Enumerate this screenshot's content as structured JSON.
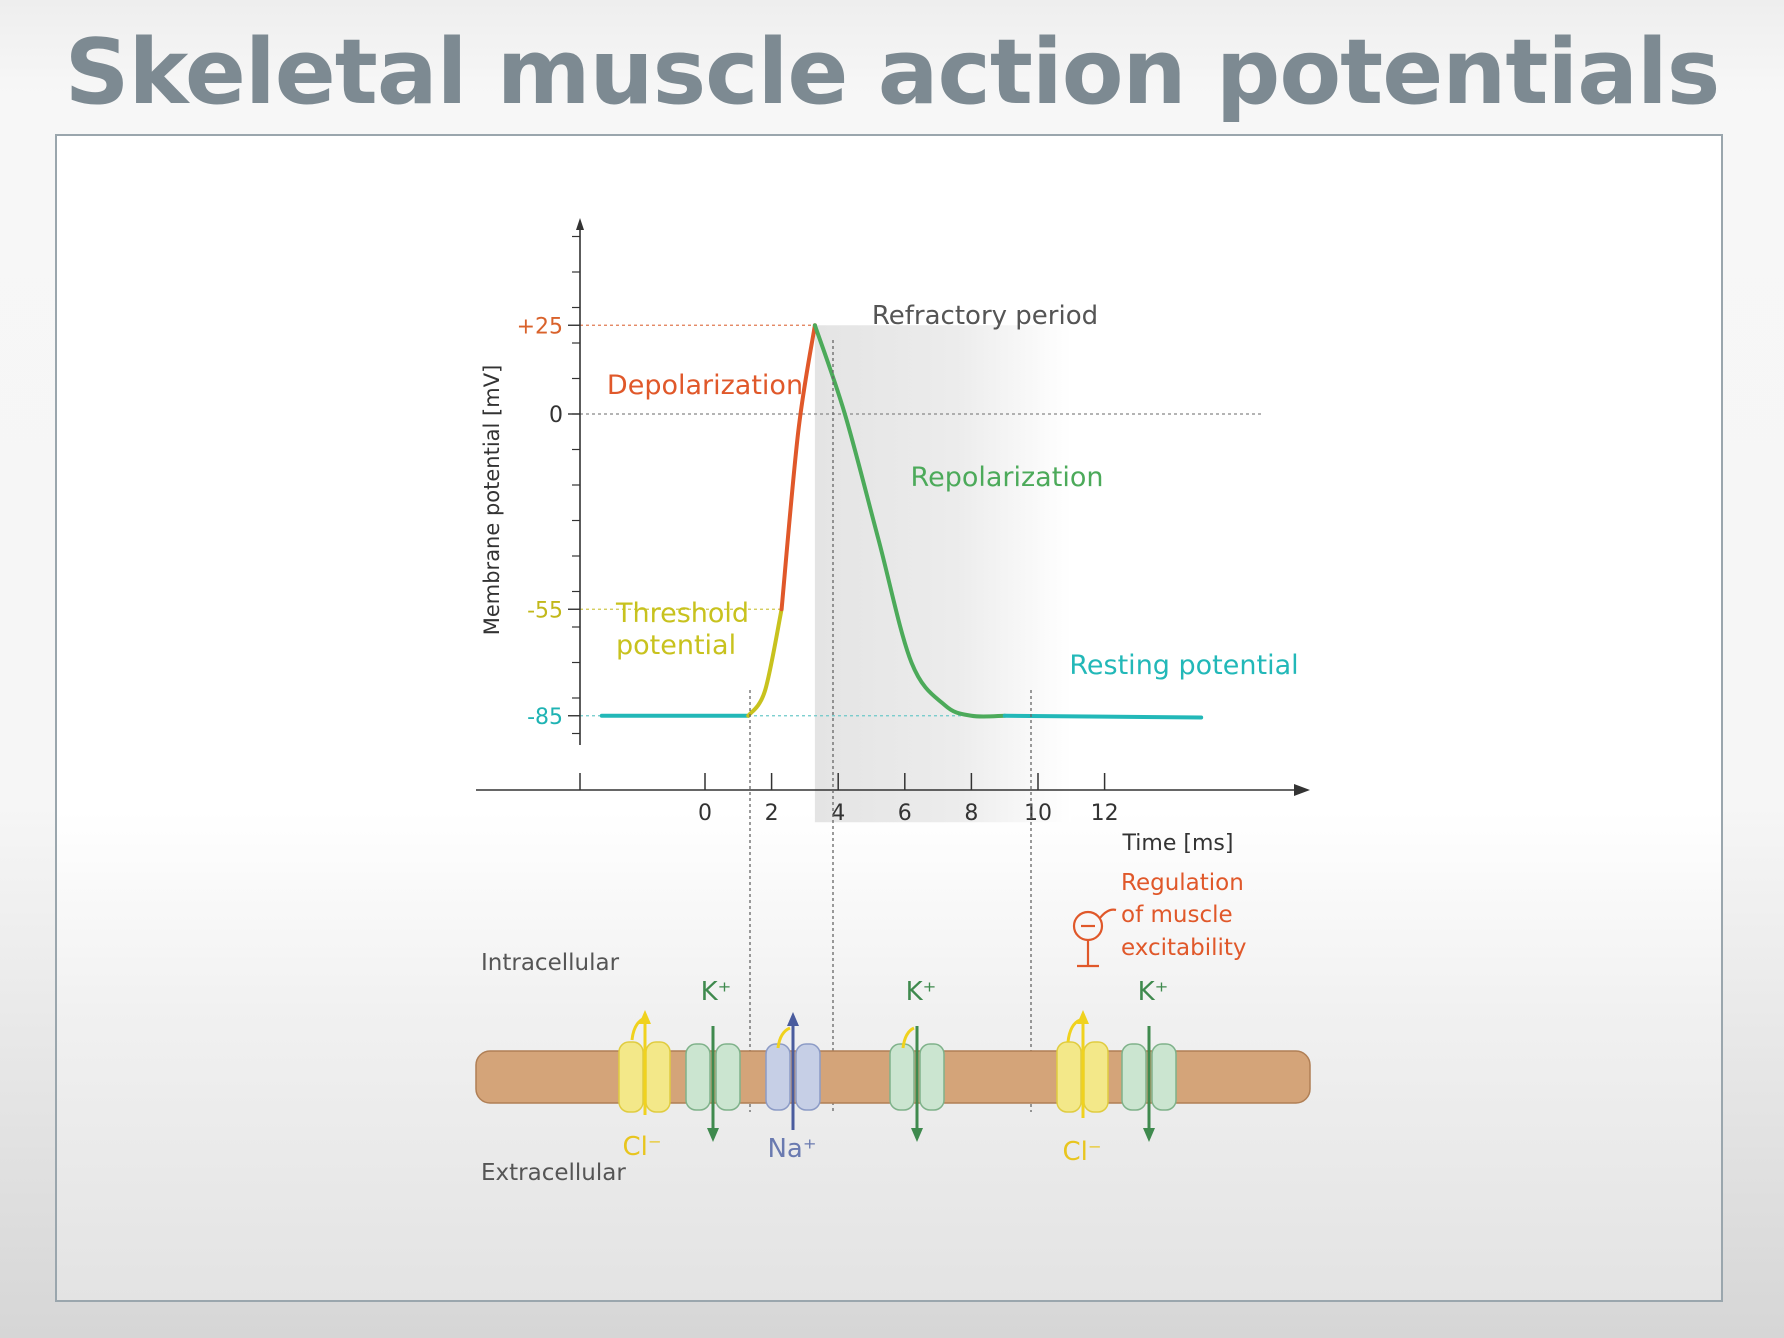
{
  "slide": {
    "title": "Skeletal muscle action potentials"
  },
  "chart_data": {
    "type": "line",
    "ylabel": "Membrane potential  [mV]",
    "xlabel": "Time  [ms]",
    "x_ticks": [
      "0",
      "2",
      "4",
      "6",
      "8",
      "10",
      "12"
    ],
    "y_ticks": [
      {
        "label": "+25",
        "value": 25,
        "color": "#d9622b"
      },
      {
        "label": "0",
        "value": 0,
        "color": "#333333"
      },
      {
        "label": "-55",
        "value": -55,
        "color": "#c2b81a"
      },
      {
        "label": "-85",
        "value": -85,
        "color": "#1fb3b3"
      }
    ],
    "series": [
      {
        "name": "Resting potential",
        "color": "#22b8b8",
        "x": [
          -3.1,
          1.3
        ],
        "y": [
          -85,
          -85
        ]
      },
      {
        "name": "Threshold potential",
        "color": "#c8c21e",
        "x": [
          1.3,
          1.8,
          2.3
        ],
        "y": [
          -85,
          -78,
          -55
        ]
      },
      {
        "name": "Depolarization",
        "color": "#e0582a",
        "x": [
          2.3,
          2.8,
          3.3
        ],
        "y": [
          -55,
          -5,
          25
        ]
      },
      {
        "name": "Repolarization",
        "color": "#4caa5a",
        "x": [
          3.3,
          4.2,
          5.2,
          6.2,
          7.2,
          8.0,
          9.0
        ],
        "y": [
          25,
          0,
          -35,
          -70,
          -82,
          -85,
          -85
        ]
      },
      {
        "name": "Resting potential",
        "color": "#22b8b8",
        "x": [
          9.0,
          14.9
        ],
        "y": [
          -85,
          -85.5
        ]
      }
    ],
    "labels": {
      "refractory": "Refractory period",
      "depolarization": "Depolarization",
      "repolarization": "Repolarization",
      "threshold_line1": "Threshold",
      "threshold_line2": "potential",
      "resting": "Resting potential"
    },
    "refractory_period_ms": [
      3.3,
      9.0
    ]
  },
  "membrane": {
    "intracellular": "Intracellular",
    "extracellular": "Extracellular",
    "regulation": [
      "Regulation",
      "of muscle",
      "excitability"
    ],
    "ion_labels": {
      "k_plus_1": "K⁺",
      "k_plus_2": "K⁺",
      "k_plus_3": "K⁺",
      "cl_minus_1": "Cl⁻",
      "cl_minus_2": "Cl⁻",
      "na_plus": "Na⁺"
    },
    "colors": {
      "membrane": "#d4a479",
      "cl_channel": "#f3e889",
      "k_channel": "#cbe5d0",
      "na_channel": "#c6cfe6",
      "cl_arrow": "#f0d21e",
      "k_arrow": "#3f8a4e",
      "na_arrow": "#4a5c9e",
      "regulation": "#e0582a"
    }
  }
}
